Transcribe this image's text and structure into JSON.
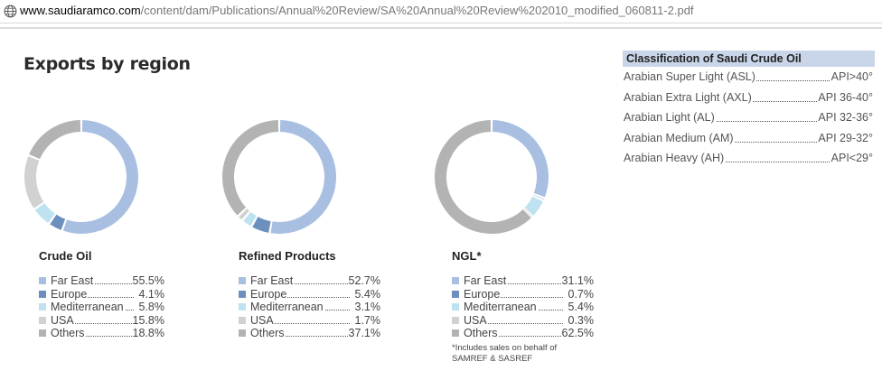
{
  "browser": {
    "url_domain": "www.saudiaramco.com",
    "url_path": "/content/dam/Publications/Annual%20Review/SA%20Annual%20Review%202010_modified_060811-2.pdf"
  },
  "page": {
    "title": "Exports by region"
  },
  "colors": {
    "far_east": "#a8bfe2",
    "europe": "#6d8fbe",
    "mediterranean": "#bfe2f1",
    "usa": "#d1d1d1",
    "others": "#b3b3b3",
    "classification_header_bg": "#c9d5e8"
  },
  "icons": {
    "browser": "globe-icon"
  },
  "chart_data": [
    {
      "type": "pie",
      "title": "Crude Oil",
      "categories": [
        "Far East",
        "Europe",
        "Mediterranean",
        "USA",
        "Others"
      ],
      "values": [
        55.5,
        4.1,
        5.8,
        15.8,
        18.8
      ],
      "value_labels": [
        "55.5%",
        "4.1%",
        "5.8%",
        "15.8%",
        "18.8%"
      ],
      "colors": [
        "#a8bfe2",
        "#6d8fbe",
        "#bfe2f1",
        "#d1d1d1",
        "#b3b3b3"
      ]
    },
    {
      "type": "pie",
      "title": "Refined Products",
      "categories": [
        "Far East",
        "Europe",
        "Mediterranean",
        "USA",
        "Others"
      ],
      "values": [
        52.7,
        5.4,
        3.1,
        1.7,
        37.1
      ],
      "value_labels": [
        "52.7%",
        "5.4%",
        "3.1%",
        "1.7%",
        "37.1%"
      ],
      "colors": [
        "#a8bfe2",
        "#6d8fbe",
        "#bfe2f1",
        "#d1d1d1",
        "#b3b3b3"
      ]
    },
    {
      "type": "pie",
      "title": "NGL*",
      "categories": [
        "Far East",
        "Europe",
        "Mediterranean",
        "USA",
        "Others"
      ],
      "values": [
        31.1,
        0.7,
        5.4,
        0.3,
        62.5
      ],
      "value_labels": [
        "31.1%",
        "0.7%",
        "5.4%",
        "0.3%",
        "62.5%"
      ],
      "colors": [
        "#a8bfe2",
        "#6d8fbe",
        "#bfe2f1",
        "#d1d1d1",
        "#b3b3b3"
      ],
      "footnote": "*Includes sales on behalf of SAMREF & SASREF"
    }
  ],
  "classification": {
    "title": "Classification of Saudi Crude Oil",
    "rows": [
      {
        "name": "Arabian Super Light (ASL)",
        "api": "API>40°"
      },
      {
        "name": "Arabian Extra Light (AXL)",
        "api": "API 36-40°"
      },
      {
        "name": "Arabian Light (AL)",
        "api": "API 32-36°"
      },
      {
        "name": "Arabian Medium (AM)",
        "api": "API 29-32°"
      },
      {
        "name": "Arabian Heavy (AH)",
        "api": "API<29°"
      }
    ]
  }
}
